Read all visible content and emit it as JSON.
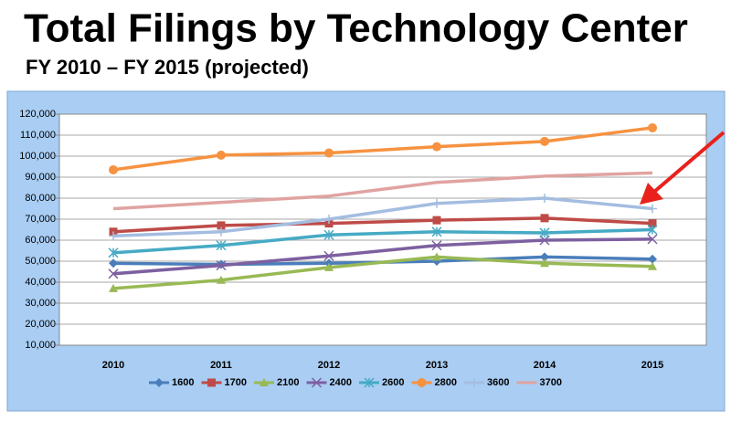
{
  "chart_data": {
    "type": "line",
    "title": "Total Filings by Technology Center",
    "subtitle": "FY 2010 – FY 2015 (projected)",
    "categories": [
      "2010",
      "2011",
      "2012",
      "2013",
      "2014",
      "2015"
    ],
    "ylim": [
      10000,
      120000
    ],
    "yticks": [
      {
        "value": 10000,
        "label": "10,000"
      },
      {
        "value": 20000,
        "label": "20,000"
      },
      {
        "value": 30000,
        "label": "30,000"
      },
      {
        "value": 40000,
        "label": "40,000"
      },
      {
        "value": 50000,
        "label": "50,000"
      },
      {
        "value": 60000,
        "label": "60,000"
      },
      {
        "value": 70000,
        "label": "70,000"
      },
      {
        "value": 80000,
        "label": "80,000"
      },
      {
        "value": 90000,
        "label": "90,000"
      },
      {
        "value": 100000,
        "label": "100,000"
      },
      {
        "value": 110000,
        "label": "110,000"
      },
      {
        "value": 120000,
        "label": "120,000"
      }
    ],
    "grid": true,
    "legend": "bottom",
    "series": [
      {
        "name": "1600",
        "color": "#4a7ebb",
        "marker": "diamond",
        "values": [
          49000,
          48500,
          49000,
          50000,
          52000,
          51000
        ]
      },
      {
        "name": "1700",
        "color": "#be4b48",
        "marker": "square",
        "values": [
          64000,
          67000,
          68000,
          69500,
          70500,
          68000
        ]
      },
      {
        "name": "2100",
        "color": "#98b954",
        "marker": "triangle",
        "values": [
          37000,
          41000,
          47000,
          52000,
          49000,
          47500
        ]
      },
      {
        "name": "2400",
        "color": "#7d60a0",
        "marker": "x",
        "values": [
          44000,
          48000,
          52500,
          57500,
          60000,
          60500
        ]
      },
      {
        "name": "2600",
        "color": "#46aac5",
        "marker": "star",
        "values": [
          54000,
          57500,
          62500,
          64000,
          63500,
          65000
        ]
      },
      {
        "name": "2800",
        "color": "#f69240",
        "marker": "circle",
        "values": [
          93500,
          100500,
          101500,
          104500,
          107000,
          113500
        ]
      },
      {
        "name": "3600",
        "color": "#a4bde0",
        "marker": "plus",
        "values": [
          62000,
          64000,
          70000,
          77500,
          80000,
          75000
        ]
      },
      {
        "name": "3700",
        "color": "#e0a3a1",
        "marker": "none",
        "values": [
          75000,
          78000,
          81000,
          87500,
          90500,
          92000
        ]
      }
    ]
  }
}
